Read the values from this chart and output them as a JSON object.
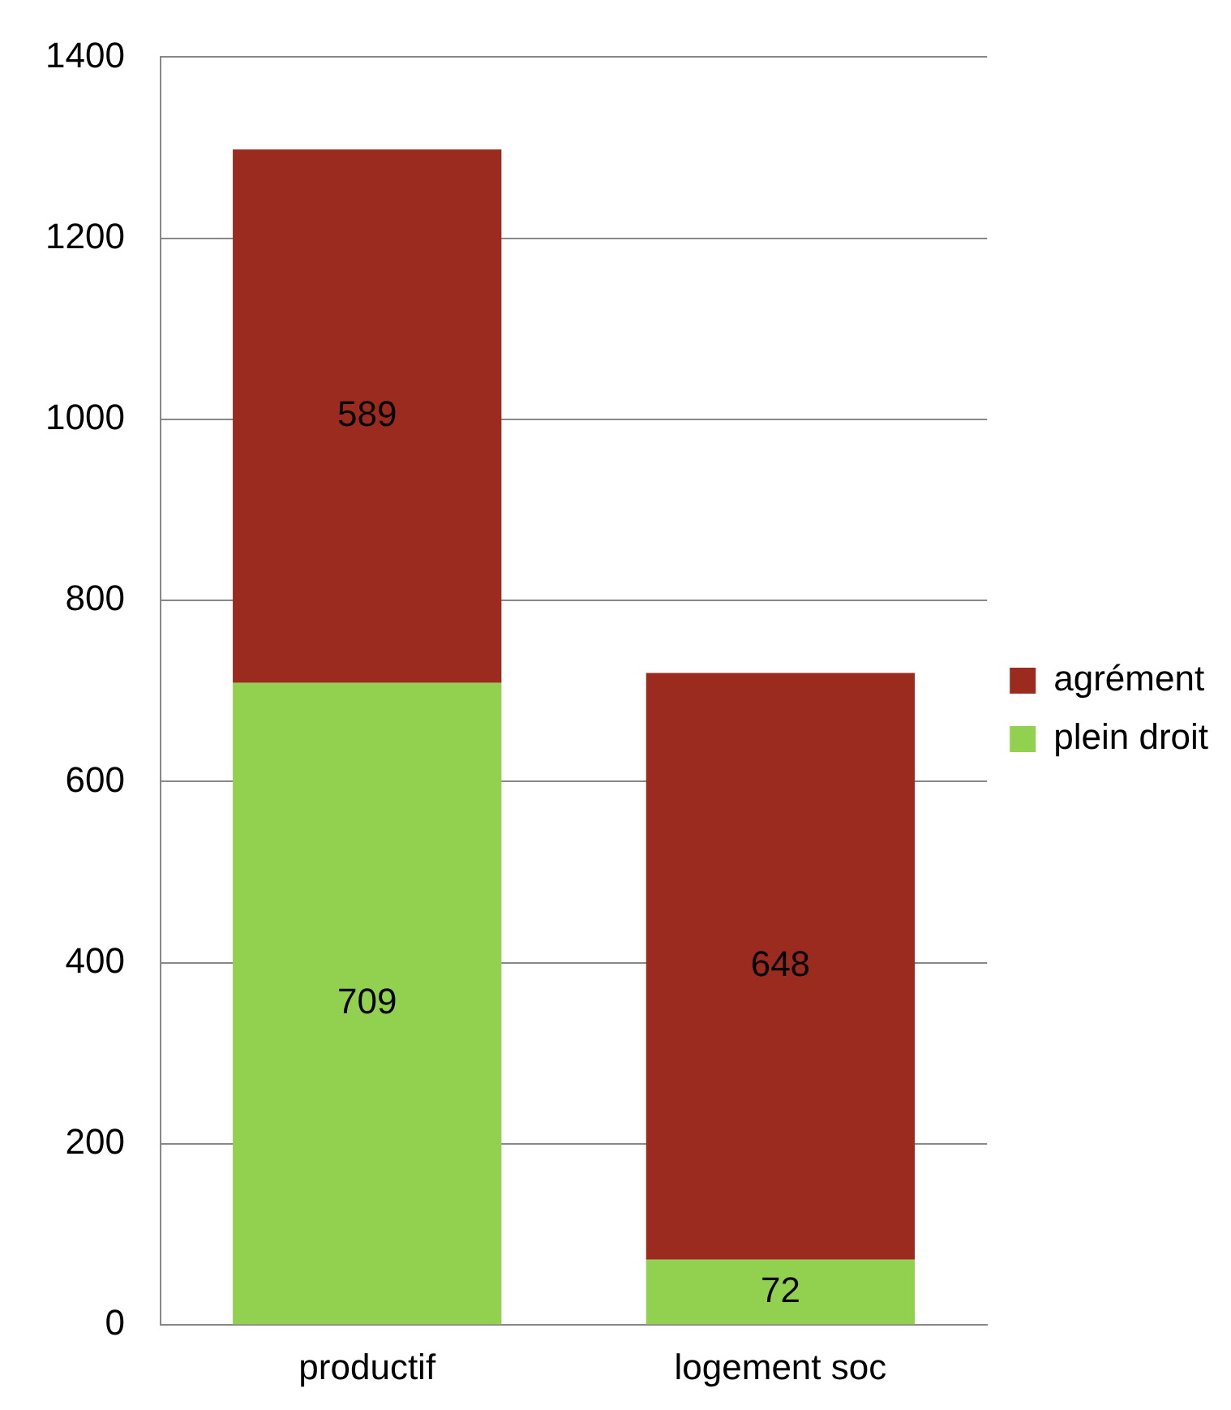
{
  "chart_data": {
    "type": "bar",
    "stacked": true,
    "categories": [
      "productif",
      "logement soc"
    ],
    "series": [
      {
        "name": "plein droit",
        "color": "#92d050",
        "values": [
          709,
          72
        ]
      },
      {
        "name": "agrément",
        "color": "#9c2b1f",
        "values": [
          589,
          648
        ]
      }
    ],
    "ylim": [
      0,
      1400
    ],
    "yticks": [
      0,
      200,
      400,
      600,
      800,
      1000,
      1200,
      1400
    ],
    "grid": "y",
    "legend": "right",
    "data_labels": true
  }
}
